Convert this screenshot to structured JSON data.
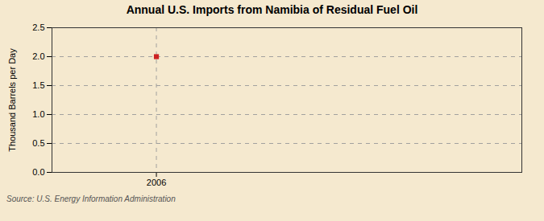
{
  "chart_data": {
    "type": "scatter",
    "title": "Annual U.S. Imports from Namibia of Residual Fuel Oil",
    "ylabel": "Thousand Barrels per Day",
    "caption": "Source: U.S. Energy Information Administration",
    "x": [
      2006
    ],
    "values": [
      2.0
    ],
    "color": "#cc2222",
    "marker": "square",
    "xlim": [
      2005.6,
      2007.4
    ],
    "xticks": [
      2006
    ],
    "ylim": [
      0.0,
      2.5
    ],
    "yticks": [
      {
        "value": 0.0,
        "label": "0.0"
      },
      0.5,
      {
        "value": 1.0,
        "label": "1.0"
      },
      1.5,
      {
        "value": 2.0,
        "label": "2.0"
      },
      2.5
    ],
    "grid": true
  }
}
